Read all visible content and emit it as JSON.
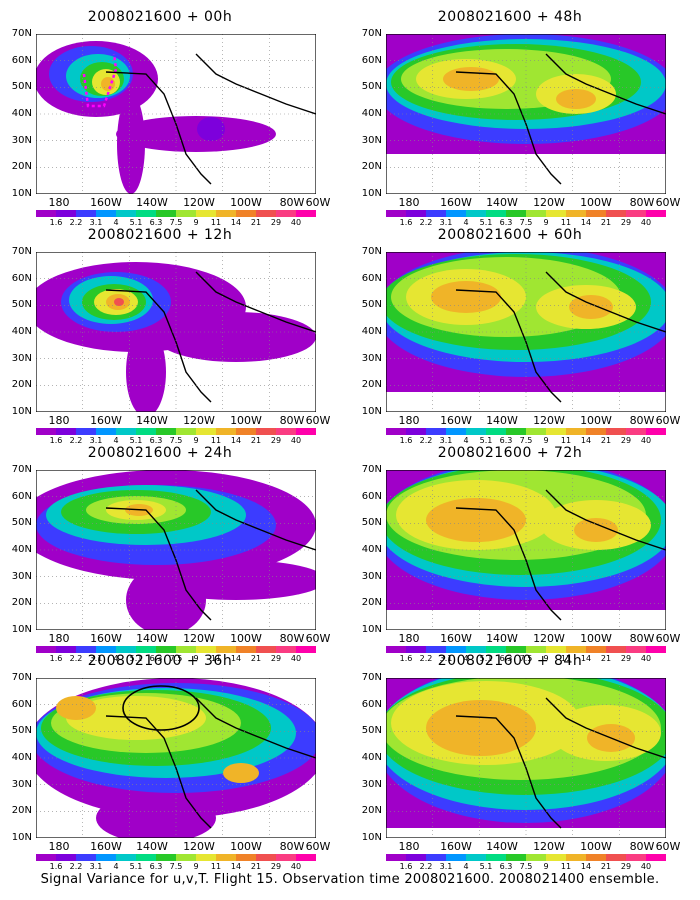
{
  "panels": [
    {
      "title": "2008021600 + 00h"
    },
    {
      "title": "2008021600 + 12h"
    },
    {
      "title": "2008021600 + 24h"
    },
    {
      "title": "2008021600 + 36h"
    },
    {
      "title": "2008021600 + 48h"
    },
    {
      "title": "2008021600 + 60h"
    },
    {
      "title": "2008021600 + 72h"
    },
    {
      "title": "2008021600 + 84h"
    }
  ],
  "lat_labels": [
    "70N",
    "60N",
    "50N",
    "40N",
    "30N",
    "20N",
    "10N"
  ],
  "lon_labels": [
    "180",
    "160W",
    "140W",
    "120W",
    "100W",
    "80W",
    "60W"
  ],
  "colorbar": {
    "levels": [
      "1.6",
      "2.2",
      "3.1",
      "4",
      "5.1",
      "6.3",
      "7.5",
      "9",
      "11",
      "14",
      "21",
      "29",
      "40"
    ],
    "colors": [
      "#a000c8",
      "#7d00dc",
      "#3c3cff",
      "#0096ff",
      "#00c8c8",
      "#00dc82",
      "#28c828",
      "#a0e632",
      "#e6e632",
      "#f0b428",
      "#f08228",
      "#f05050",
      "#fa3c82",
      "#ff00aa"
    ]
  },
  "footer": "Signal Variance for u,v,T. Flight 15. Observation time 2008021600. 2008021400 ensemble."
}
